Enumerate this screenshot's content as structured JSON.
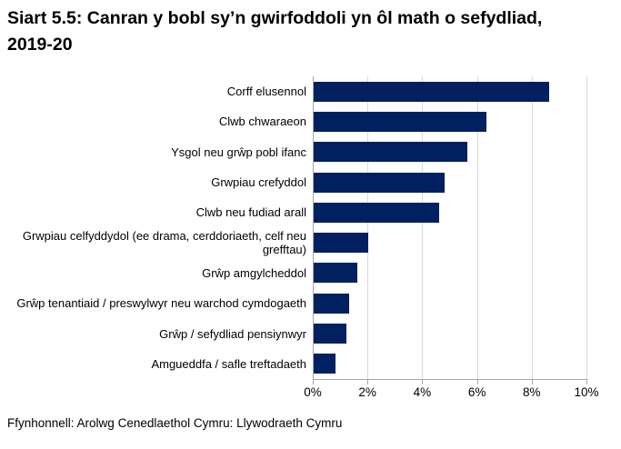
{
  "title": "Siart 5.5: Canran y bobl sy’n gwirfoddoli yn ôl math o sefydliad, 2019-20",
  "source": "Ffynhonnell: Arolwg Cenedlaethol Cymru: Llywodraeth Cymru",
  "chart_data": {
    "type": "bar",
    "orientation": "horizontal",
    "title": "Siart 5.5: Canran y bobl sy’n gwirfoddoli yn ôl math o sefydliad, 2019-20",
    "categories": [
      "Corff elusennol",
      "Clwb chwaraeon",
      "Ysgol neu grŵp pobl ifanc",
      "Grwpiau crefyddol",
      "Clwb neu fudiad arall",
      "Grwpiau celfyddydol (ee drama, cerddoriaeth, celf neu grefftau)",
      "Grŵp amgylcheddol",
      "Grŵp tenantiaid / preswylwyr neu warchod cymdogaeth",
      "Grŵp / sefydliad pensiynwyr",
      "Amgueddfa / safle treftadaeth"
    ],
    "values": [
      8.6,
      6.3,
      5.6,
      4.8,
      4.6,
      2.0,
      1.6,
      1.3,
      1.2,
      0.8
    ],
    "unit": "%",
    "xlabel": "",
    "ylabel": "",
    "x_ticks": [
      "0%",
      "2%",
      "4%",
      "6%",
      "8%",
      "10%"
    ],
    "xlim": [
      0,
      10
    ],
    "grid": true,
    "legend": false,
    "bar_color": "#002060",
    "gridline_color": "#d9d9d9",
    "axis_color": "#a6a6a6"
  }
}
